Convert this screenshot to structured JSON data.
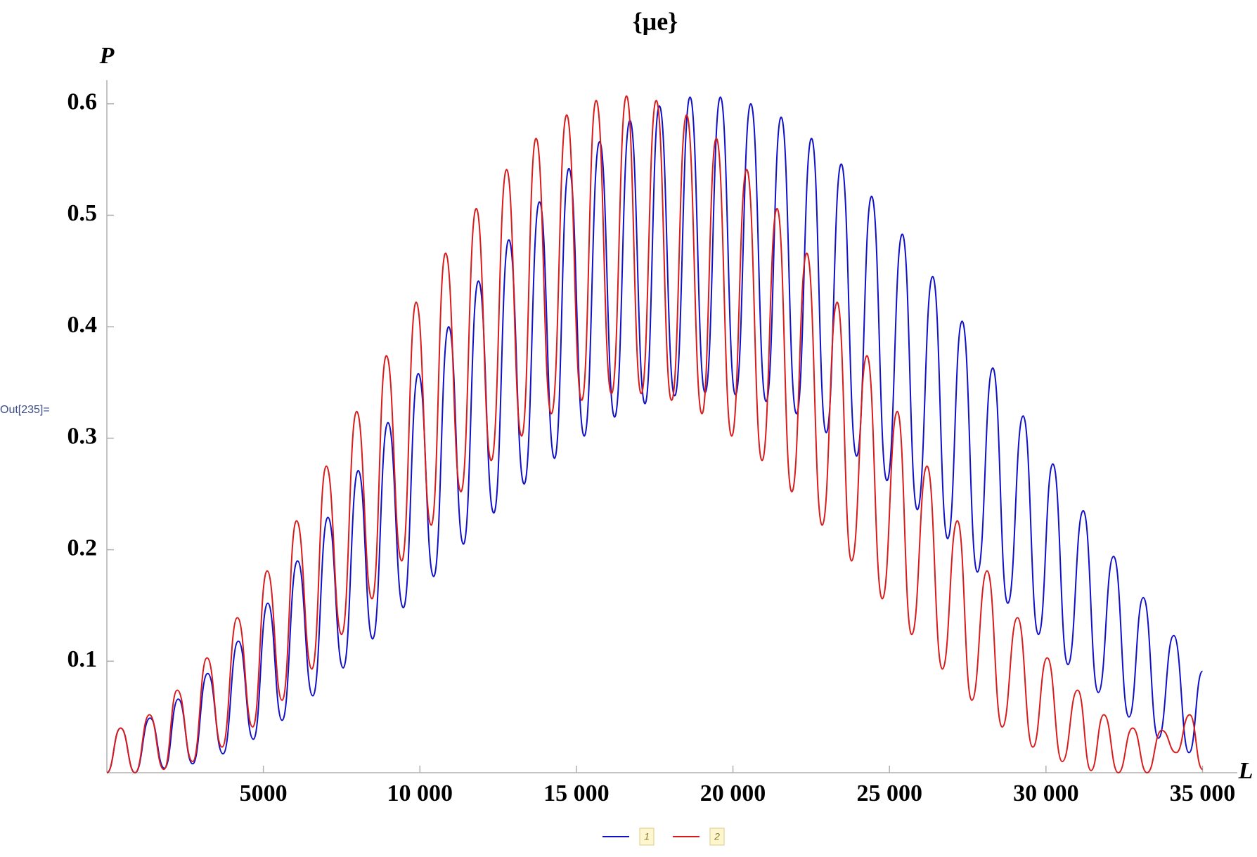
{
  "chart_data": {
    "type": "line",
    "title": "{μe}",
    "x_label": "L",
    "y_label": "P",
    "cell_label": "Out[235]=",
    "xlim": [
      0,
      36000
    ],
    "ylim": [
      0,
      0.62
    ],
    "xticks": [
      {
        "value": 5000,
        "label": "5000"
      },
      {
        "value": 10000,
        "label": "10 000"
      },
      {
        "value": 15000,
        "label": "15 000"
      },
      {
        "value": 20000,
        "label": "20 000"
      },
      {
        "value": 25000,
        "label": "25 000"
      },
      {
        "value": 30000,
        "label": "30 000"
      },
      {
        "value": 35000,
        "label": "35 000"
      }
    ],
    "yticks": [
      0.1,
      0.2,
      0.3,
      0.4,
      0.5,
      0.6
    ],
    "series": [
      {
        "name": "1",
        "color": "#1010c8",
        "x": [
          0,
          440,
          900,
          1380,
          1840,
          2280,
          2740,
          3220,
          3710,
          4200,
          4680,
          5140,
          5600,
          6090,
          6580,
          7060,
          7550,
          8030,
          8490,
          8980,
          9470,
          9950,
          10440,
          10920,
          11390,
          11870,
          12360,
          12840,
          13330,
          13820,
          14300,
          14760,
          15250,
          15740,
          16220,
          16710,
          17190,
          17650,
          18140,
          18630,
          19110,
          19600,
          20080,
          20570,
          21060,
          21540,
          22030,
          22510,
          22980,
          23460,
          23950,
          24430,
          24920,
          25410,
          25890,
          26380,
          26860,
          27320,
          27810,
          28300,
          28780,
          29270,
          29760,
          30220,
          30700,
          31190,
          31670,
          32160,
          32650,
          33110,
          33590,
          34080,
          34570,
          35000
        ],
        "values": [
          0,
          0.04,
          0,
          0.049,
          0.004,
          0.066,
          0.008,
          0.089,
          0.017,
          0.118,
          0.03,
          0.152,
          0.047,
          0.19,
          0.069,
          0.229,
          0.094,
          0.271,
          0.12,
          0.314,
          0.148,
          0.358,
          0.176,
          0.4,
          0.205,
          0.441,
          0.233,
          0.478,
          0.259,
          0.512,
          0.282,
          0.542,
          0.302,
          0.566,
          0.319,
          0.585,
          0.331,
          0.598,
          0.338,
          0.606,
          0.341,
          0.606,
          0.339,
          0.6,
          0.333,
          0.588,
          0.322,
          0.569,
          0.305,
          0.546,
          0.284,
          0.517,
          0.262,
          0.483,
          0.236,
          0.445,
          0.21,
          0.405,
          0.18,
          0.363,
          0.152,
          0.32,
          0.124,
          0.277,
          0.097,
          0.235,
          0.072,
          0.194,
          0.05,
          0.157,
          0.031,
          0.123,
          0.018,
          0.091
        ]
      },
      {
        "name": "2",
        "color": "#d81c1c",
        "x": [
          0,
          440,
          900,
          1360,
          1820,
          2250,
          2740,
          3200,
          3680,
          4170,
          4660,
          5120,
          5600,
          6060,
          6550,
          7010,
          7500,
          7980,
          8470,
          8930,
          9420,
          9880,
          10360,
          10820,
          11310,
          11800,
          12280,
          12770,
          13250,
          13710,
          14200,
          14690,
          15170,
          15630,
          16120,
          16600,
          17070,
          17550,
          18040,
          18520,
          19010,
          19470,
          19960,
          20440,
          20930,
          21410,
          21880,
          22360,
          22850,
          23330,
          23790,
          24280,
          24770,
          25250,
          25710,
          26200,
          26690,
          27170,
          27630,
          28120,
          28600,
          29090,
          29580,
          30040,
          30520,
          31010,
          31440,
          31850,
          32310,
          32770,
          33230,
          33700,
          34160,
          34590,
          35000
        ],
        "values": [
          0,
          0.04,
          0,
          0.052,
          0.003,
          0.074,
          0.01,
          0.103,
          0.023,
          0.139,
          0.041,
          0.181,
          0.065,
          0.226,
          0.093,
          0.275,
          0.124,
          0.324,
          0.156,
          0.374,
          0.19,
          0.422,
          0.222,
          0.466,
          0.252,
          0.506,
          0.28,
          0.541,
          0.302,
          0.569,
          0.322,
          0.59,
          0.334,
          0.603,
          0.34,
          0.607,
          0.34,
          0.603,
          0.334,
          0.59,
          0.322,
          0.569,
          0.302,
          0.541,
          0.28,
          0.506,
          0.252,
          0.466,
          0.222,
          0.422,
          0.19,
          0.374,
          0.156,
          0.324,
          0.124,
          0.275,
          0.093,
          0.226,
          0.065,
          0.181,
          0.041,
          0.139,
          0.023,
          0.103,
          0.01,
          0.074,
          0.002,
          0.052,
          0,
          0.04,
          0,
          0.038,
          0.018,
          0.052,
          0.003
        ]
      }
    ]
  }
}
